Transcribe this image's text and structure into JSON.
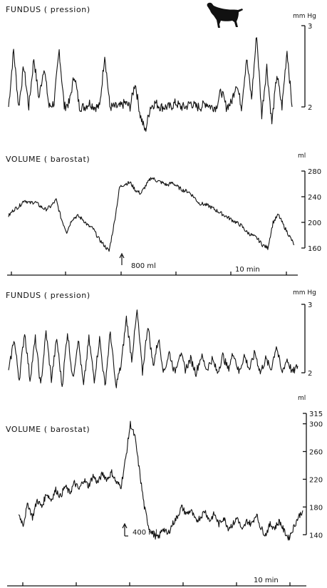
{
  "icon": "dog-icon",
  "time_scale_label": "10 min",
  "chart_data": [
    {
      "type": "line",
      "title": "FUNDUS ( pression)",
      "unit": "mm Hg",
      "ylim": [
        2,
        3
      ],
      "yticks": [
        3,
        2
      ],
      "series": [
        {
          "values": [
            2.0,
            2.7,
            2.0,
            2.5,
            2.0,
            2.6,
            2.1,
            2.5,
            2.0,
            2.05,
            2.7,
            2.0,
            2.05,
            2.4,
            2.0,
            2.0,
            2.05,
            2.0,
            2.0,
            2.65,
            2.0,
            2.0,
            2.0,
            2.05,
            2.0,
            2.3,
            1.9,
            1.7,
            2.0,
            2.05,
            2.0,
            2.0,
            2.0,
            2.05,
            2.0,
            2.0,
            2.05,
            2.0,
            2.0,
            2.05,
            2.0,
            2.0,
            2.2,
            2.0,
            2.05,
            2.3,
            2.0,
            2.6,
            2.1,
            2.9,
            1.9,
            2.5,
            1.8,
            2.4,
            2.0,
            2.7,
            2.0
          ]
        }
      ]
    },
    {
      "type": "line",
      "title": "VOLUME ( barostat)",
      "unit": "ml",
      "ylim": [
        160,
        280
      ],
      "yticks": [
        280,
        240,
        200,
        160
      ],
      "annotation": "800 ml",
      "series": [
        {
          "values": [
            210,
            220,
            225,
            235,
            230,
            232,
            225,
            220,
            225,
            235,
            205,
            185,
            205,
            210,
            205,
            195,
            190,
            175,
            165,
            155,
            200,
            255,
            260,
            262,
            250,
            245,
            258,
            270,
            265,
            262,
            258,
            262,
            255,
            250,
            248,
            240,
            230,
            228,
            225,
            220,
            215,
            210,
            205,
            200,
            195,
            185,
            180,
            175,
            165,
            160,
            200,
            212,
            195,
            180,
            165
          ]
        }
      ]
    },
    {
      "type": "line",
      "title": "FUNDUS ( pression)",
      "unit": "mm Hg",
      "ylim": [
        2,
        3
      ],
      "yticks": [
        3,
        2
      ],
      "series": [
        {
          "values": [
            2.0,
            2.5,
            1.9,
            2.6,
            1.9,
            2.5,
            1.8,
            2.6,
            1.9,
            2.5,
            1.8,
            2.6,
            1.9,
            2.5,
            1.8,
            2.5,
            1.9,
            2.5,
            1.8,
            2.6,
            1.8,
            2.1,
            2.8,
            2.2,
            2.9,
            2.0,
            2.7,
            2.1,
            2.5,
            2.0,
            2.3,
            2.0,
            2.3,
            2.05,
            2.2,
            2.0,
            2.25,
            2.05,
            2.2,
            2.0,
            2.25,
            2.05,
            2.3,
            2.0,
            2.25,
            2.05,
            2.3,
            2.0,
            2.2,
            2.05,
            2.4,
            2.0,
            2.2,
            2.0,
            2.1
          ]
        }
      ]
    },
    {
      "type": "line",
      "title": "VOLUME ( barostat)",
      "unit": "ml",
      "ylim": [
        130,
        315
      ],
      "yticks": [
        315,
        300,
        260,
        220,
        180,
        140
      ],
      "annotation": "400 ml",
      "series": [
        {
          "values": [
            170,
            155,
            185,
            165,
            190,
            180,
            200,
            190,
            205,
            195,
            210,
            200,
            215,
            205,
            220,
            210,
            225,
            215,
            228,
            220,
            230,
            215,
            210,
            250,
            300,
            280,
            230,
            180,
            150,
            140,
            135,
            150,
            140,
            155,
            165,
            180,
            170,
            175,
            160,
            165,
            175,
            160,
            170,
            155,
            165,
            150,
            155,
            165,
            145,
            160,
            155,
            170,
            150,
            140,
            155,
            150,
            160,
            145,
            135,
            150,
            165,
            175
          ]
        }
      ]
    }
  ]
}
